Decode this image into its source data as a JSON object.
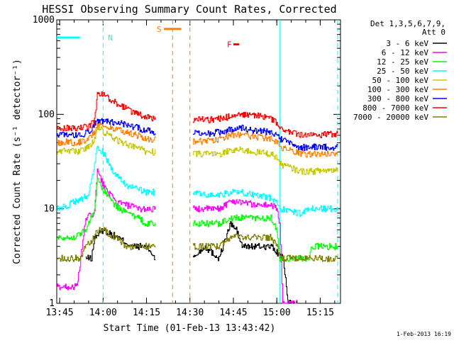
{
  "chart_data": {
    "type": "line",
    "title": "HESSI Observing Summary Count Rates, Corrected",
    "xlabel": "Start Time (01-Feb-13 13:43:42)",
    "ylabel": "Corrected Count Rate (s⁻¹ detector⁻¹)",
    "y_scale": "log",
    "ylim": [
      1,
      1000
    ],
    "xlim_minutes_after_1340": [
      4,
      102
    ],
    "x_ticks": [
      {
        "label": "13:45",
        "m": 5
      },
      {
        "label": "14:00",
        "m": 20
      },
      {
        "label": "14:15",
        "m": 35
      },
      {
        "label": "14:30",
        "m": 50
      },
      {
        "label": "14:45",
        "m": 65
      },
      {
        "label": "15:00",
        "m": 80
      },
      {
        "label": "15:15",
        "m": 95
      }
    ],
    "y_ticks": [
      {
        "label": "1",
        "v": 1
      },
      {
        "label": "10",
        "v": 10
      },
      {
        "label": "100",
        "v": 100
      },
      {
        "label": "1000",
        "v": 1000
      }
    ],
    "legend": {
      "position": "right",
      "header_lines": [
        "Det 1,3,5,6,7,9,",
        "Att 0"
      ]
    },
    "gap_minutes": [
      38,
      51
    ],
    "series": [
      {
        "name": "3 - 6 keV",
        "color": "#000000",
        "points": [
          [
            14,
            3
          ],
          [
            16,
            3
          ],
          [
            17,
            5
          ],
          [
            20,
            6
          ],
          [
            25,
            5
          ],
          [
            30,
            4
          ],
          [
            35,
            4
          ],
          [
            38,
            3
          ],
          [
            51,
            3
          ],
          [
            55,
            4
          ],
          [
            60,
            3
          ],
          [
            64,
            7
          ],
          [
            66,
            6
          ],
          [
            68,
            4
          ],
          [
            72,
            4
          ],
          [
            78,
            4
          ],
          [
            82,
            3
          ],
          [
            84,
            1
          ],
          [
            87,
            1
          ]
        ]
      },
      {
        "name": "6 - 12 keV",
        "color": "#ff00ff",
        "points": [
          [
            4,
            1.5
          ],
          [
            10,
            1.5
          ],
          [
            11,
            1.5
          ],
          [
            14,
            8
          ],
          [
            17,
            9
          ],
          [
            18,
            25
          ],
          [
            20,
            18
          ],
          [
            24,
            12
          ],
          [
            28,
            11
          ],
          [
            32,
            10
          ],
          [
            35,
            10
          ],
          [
            38,
            10
          ],
          [
            51,
            10
          ],
          [
            56,
            10
          ],
          [
            60,
            10
          ],
          [
            64,
            12
          ],
          [
            68,
            12
          ],
          [
            72,
            11
          ],
          [
            78,
            11
          ],
          [
            80,
            10
          ],
          [
            81,
            7
          ],
          [
            82,
            1
          ],
          [
            87,
            1
          ]
        ]
      },
      {
        "name": "12 - 25 keV",
        "color": "#00ff00",
        "points": [
          [
            4,
            5
          ],
          [
            10,
            5
          ],
          [
            14,
            6
          ],
          [
            17,
            10
          ],
          [
            18,
            20
          ],
          [
            20,
            16
          ],
          [
            24,
            11
          ],
          [
            28,
            9
          ],
          [
            32,
            8
          ],
          [
            35,
            7
          ],
          [
            38,
            7
          ],
          [
            51,
            7
          ],
          [
            56,
            7
          ],
          [
            60,
            7
          ],
          [
            64,
            8
          ],
          [
            68,
            8
          ],
          [
            72,
            8
          ],
          [
            78,
            8
          ],
          [
            80,
            6
          ],
          [
            81,
            3
          ],
          [
            88,
            3
          ],
          [
            91,
            3
          ],
          [
            92,
            4
          ],
          [
            101,
            4
          ]
        ]
      },
      {
        "name": "25 - 50 keV",
        "color": "#00ffff",
        "points": [
          [
            4,
            10
          ],
          [
            8,
            11
          ],
          [
            10,
            12
          ],
          [
            13,
            13
          ],
          [
            15,
            14
          ],
          [
            17,
            30
          ],
          [
            18,
            45
          ],
          [
            20,
            40
          ],
          [
            22,
            30
          ],
          [
            24,
            23
          ],
          [
            28,
            18
          ],
          [
            32,
            16
          ],
          [
            35,
            15
          ],
          [
            38,
            15
          ],
          [
            51,
            15
          ],
          [
            55,
            14
          ],
          [
            60,
            14
          ],
          [
            64,
            15
          ],
          [
            68,
            15
          ],
          [
            72,
            14
          ],
          [
            78,
            13
          ],
          [
            80,
            12
          ],
          [
            81,
            10
          ],
          [
            88,
            9
          ],
          [
            92,
            10
          ],
          [
            101,
            10
          ]
        ]
      },
      {
        "name": "50 - 100 keV",
        "color": "#c8c800",
        "points": [
          [
            4,
            40
          ],
          [
            8,
            42
          ],
          [
            10,
            40
          ],
          [
            13,
            42
          ],
          [
            15,
            45
          ],
          [
            17,
            55
          ],
          [
            18,
            75
          ],
          [
            20,
            65
          ],
          [
            24,
            55
          ],
          [
            28,
            48
          ],
          [
            32,
            45
          ],
          [
            35,
            40
          ],
          [
            38,
            40
          ],
          [
            51,
            38
          ],
          [
            56,
            38
          ],
          [
            60,
            38
          ],
          [
            64,
            42
          ],
          [
            66,
            42
          ],
          [
            68,
            42
          ],
          [
            72,
            40
          ],
          [
            76,
            39
          ],
          [
            78,
            38
          ],
          [
            80,
            35
          ],
          [
            81,
            30
          ],
          [
            88,
            25
          ],
          [
            92,
            25
          ],
          [
            101,
            26
          ]
        ]
      },
      {
        "name": "100 - 300 keV",
        "color": "#ff7f00",
        "points": [
          [
            4,
            50
          ],
          [
            8,
            52
          ],
          [
            10,
            50
          ],
          [
            13,
            52
          ],
          [
            15,
            55
          ],
          [
            17,
            65
          ],
          [
            18,
            80
          ],
          [
            20,
            75
          ],
          [
            24,
            70
          ],
          [
            28,
            65
          ],
          [
            32,
            60
          ],
          [
            35,
            55
          ],
          [
            38,
            55
          ],
          [
            51,
            52
          ],
          [
            56,
            52
          ],
          [
            60,
            55
          ],
          [
            64,
            60
          ],
          [
            68,
            62
          ],
          [
            72,
            58
          ],
          [
            78,
            55
          ],
          [
            80,
            50
          ],
          [
            81,
            45
          ],
          [
            88,
            38
          ],
          [
            92,
            38
          ],
          [
            101,
            38
          ]
        ]
      },
      {
        "name": "300 - 800 keV",
        "color": "#0000ff",
        "points": [
          [
            4,
            60
          ],
          [
            8,
            63
          ],
          [
            10,
            60
          ],
          [
            13,
            62
          ],
          [
            15,
            65
          ],
          [
            17,
            80
          ],
          [
            18,
            88
          ],
          [
            20,
            85
          ],
          [
            24,
            82
          ],
          [
            28,
            78
          ],
          [
            32,
            72
          ],
          [
            35,
            68
          ],
          [
            38,
            65
          ],
          [
            51,
            63
          ],
          [
            56,
            63
          ],
          [
            60,
            65
          ],
          [
            64,
            70
          ],
          [
            66,
            72
          ],
          [
            68,
            72
          ],
          [
            72,
            68
          ],
          [
            78,
            65
          ],
          [
            80,
            60
          ],
          [
            81,
            55
          ],
          [
            88,
            45
          ],
          [
            92,
            45
          ],
          [
            101,
            45
          ]
        ]
      },
      {
        "name": "800 - 7000 keV",
        "color": "#ff0000",
        "points": [
          [
            4,
            70
          ],
          [
            8,
            72
          ],
          [
            10,
            70
          ],
          [
            13,
            73
          ],
          [
            15,
            75
          ],
          [
            17,
            85
          ],
          [
            18,
            170
          ],
          [
            20,
            160
          ],
          [
            24,
            135
          ],
          [
            28,
            115
          ],
          [
            32,
            100
          ],
          [
            35,
            95
          ],
          [
            38,
            90
          ],
          [
            51,
            88
          ],
          [
            56,
            88
          ],
          [
            60,
            90
          ],
          [
            64,
            95
          ],
          [
            68,
            100
          ],
          [
            72,
            98
          ],
          [
            76,
            95
          ],
          [
            78,
            90
          ],
          [
            80,
            80
          ],
          [
            81,
            70
          ],
          [
            88,
            60
          ],
          [
            92,
            60
          ],
          [
            101,
            62
          ]
        ]
      },
      {
        "name": "7000 - 20000 keV",
        "color": "#808000",
        "points": [
          [
            4,
            3
          ],
          [
            10,
            3
          ],
          [
            12,
            3
          ],
          [
            14,
            4
          ],
          [
            17,
            5
          ],
          [
            18,
            6
          ],
          [
            20,
            6
          ],
          [
            24,
            5
          ],
          [
            28,
            4
          ],
          [
            32,
            4
          ],
          [
            35,
            4
          ],
          [
            38,
            4
          ],
          [
            51,
            4
          ],
          [
            56,
            4
          ],
          [
            60,
            4
          ],
          [
            64,
            5
          ],
          [
            68,
            5
          ],
          [
            72,
            5
          ],
          [
            78,
            5
          ],
          [
            80,
            4
          ],
          [
            81,
            3
          ],
          [
            88,
            3
          ],
          [
            92,
            3
          ],
          [
            101,
            3
          ]
        ]
      }
    ],
    "annotations": [
      {
        "label": "N",
        "color": "#00ffff",
        "segments": [
          [
            4,
            12
          ]
        ],
        "level": 650
      },
      {
        "label": "S",
        "color": "#ff7f00",
        "segments": [
          [
            41,
            47
          ]
        ],
        "level": 800
      },
      {
        "label": "F",
        "color": "#ff0000",
        "segments": [
          [
            65,
            67
          ]
        ],
        "level": 550
      }
    ],
    "vertical_markers": [
      {
        "m": 20,
        "color": "#00ffff",
        "style": "dash"
      },
      {
        "m": 44,
        "color": "#ff7f00",
        "style": "dash"
      },
      {
        "m": 50,
        "color": "#ff7f00",
        "style": "dash"
      },
      {
        "m": 81,
        "color": "#00ffff",
        "style": "solid"
      },
      {
        "m": 101,
        "color": "#00ffff",
        "style": "dash"
      }
    ]
  },
  "footer": {
    "stamp": "1-Feb-2013 16:19"
  }
}
